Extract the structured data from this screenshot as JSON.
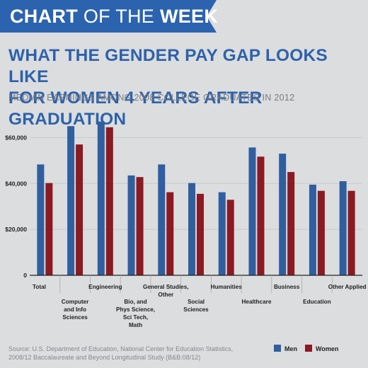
{
  "banner": {
    "bold": "CHART",
    "light": "OF THE",
    "bold2": "WEEK"
  },
  "title": "WHAT THE GENDER PAY GAP LOOKS LIKE\nFOR WOMEN 4 YEARS AFTER GRADUATION",
  "subtitle": "MEDIAN EARNINGS AMONG 2008 COLLEGE GRADUATES IN 2012",
  "source": "Source: U.S. Department of Education, National Center for Education Statistics, 2008/12 Baccalaureate and Beyond Longitudinal Study (B&B:08/12)",
  "colors": {
    "men": "#2f5f9f",
    "women": "#8b1a22",
    "brand": "#2b63ae"
  },
  "chart_data": {
    "type": "bar",
    "title": "WHAT THE GENDER PAY GAP LOOKS LIKE FOR WOMEN 4 YEARS AFTER GRADUATION",
    "subtitle": "MEDIAN EARNINGS AMONG 2008 COLLEGE GRADUATES IN 2012",
    "categories": [
      [
        "Total"
      ],
      [
        "Computer",
        "and Info",
        "Sciences"
      ],
      [
        "Engineering"
      ],
      [
        "Bio, and",
        "Phys Science,",
        "Sci Tech,",
        "Math"
      ],
      [
        "General Studies,",
        "Other"
      ],
      [
        "Social",
        "Sciences"
      ],
      [
        "Humanities"
      ],
      [
        "Healthcare"
      ],
      [
        "Business"
      ],
      [
        "Education"
      ],
      [
        "Other Applied"
      ]
    ],
    "label_row": [
      "top",
      "bottom",
      "top",
      "bottom",
      "top",
      "bottom",
      "top",
      "bottom",
      "top",
      "bottom",
      "top"
    ],
    "series": [
      {
        "name": "Men",
        "values": [
          48300,
          65000,
          67000,
          43500,
          48300,
          40200,
          36200,
          55700,
          53000,
          39500,
          41000
        ]
      },
      {
        "name": "Women",
        "values": [
          40200,
          57000,
          64500,
          42800,
          36200,
          35500,
          32900,
          51700,
          45000,
          36800,
          36800
        ]
      }
    ],
    "yticks": [
      0,
      20000,
      40000,
      60000
    ],
    "ytick_labels": [
      "0",
      "$20,000",
      "$40,000",
      "$60,000"
    ],
    "ylim": [
      0,
      70000
    ],
    "xlabel": "",
    "ylabel": "",
    "grid": true,
    "legend": "bottom-right"
  }
}
